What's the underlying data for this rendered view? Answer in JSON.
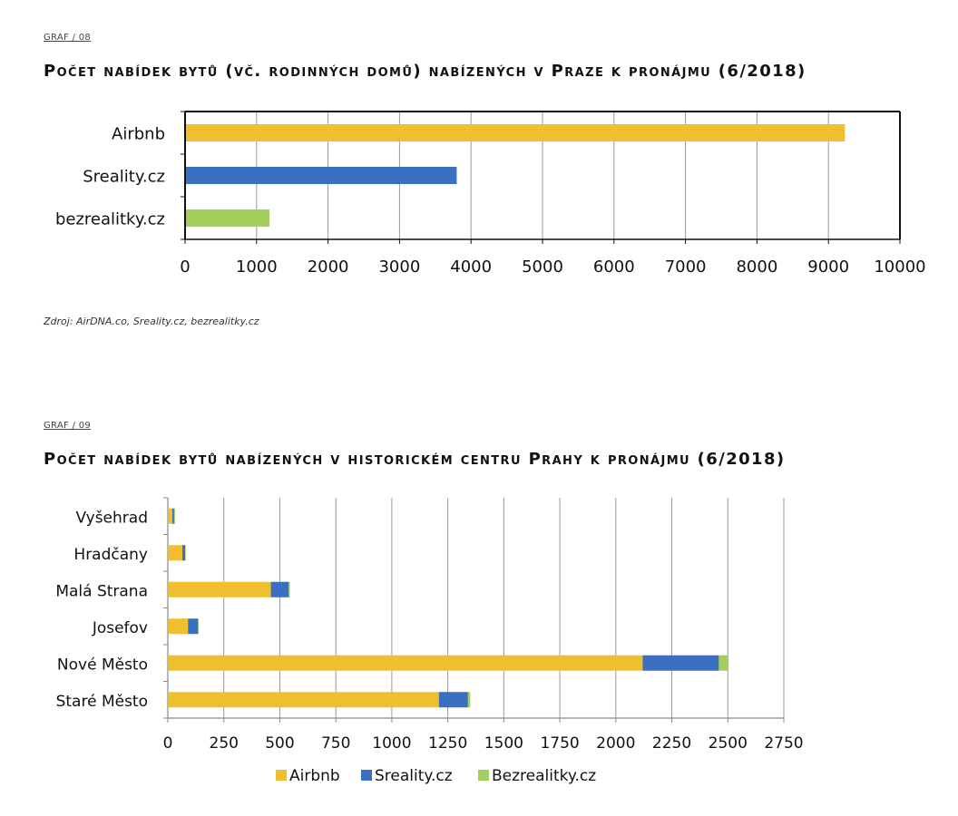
{
  "charts": [
    {
      "graf_label": "GRAF / 08",
      "title": "Počet nabídek bytů (vč. rodinných domů) nabízených v Praze k pronájmu (6/2018)",
      "source": "Zdroj: AirDNA.co, Sreality.cz, bezrealitky.cz"
    },
    {
      "graf_label": "GRAF / 09",
      "title": "Počet nabídek bytů nabízených v historickém centru Prahy k pronájmu (6/2018)"
    }
  ],
  "colors": {
    "airbnb": "#f0bf2e",
    "sreality": "#3a6fc1",
    "bezrealitky": "#a3cf5c",
    "grid": "#9a9a9a"
  },
  "chart_data": [
    {
      "type": "bar",
      "orientation": "horizontal",
      "title": "Počet nabídek bytů (vč. rodinných domů) nabízených v Praze k pronájmu (6/2018)",
      "categories": [
        "Airbnb",
        "Sreality.cz",
        "bezrealitky.cz"
      ],
      "values": [
        9230,
        3800,
        1180
      ],
      "bar_colors": [
        "#f0bf2e",
        "#3a6fc1",
        "#a3cf5c"
      ],
      "xlim": [
        0,
        10000
      ],
      "xticks": [
        0,
        1000,
        2000,
        3000,
        4000,
        5000,
        6000,
        7000,
        8000,
        9000,
        10000
      ],
      "grid": true,
      "legend": false
    },
    {
      "type": "bar",
      "orientation": "horizontal",
      "stacked": true,
      "title": "Počet nabídek bytů nabízených v historickém centru Prahy k pronájmu (6/2018)",
      "categories": [
        "Vyšehrad",
        "Hradčany",
        "Malá Strana",
        "Josefov",
        "Nové Město",
        "Staré Město"
      ],
      "series": [
        {
          "name": "Airbnb",
          "color": "#f0bf2e",
          "values": [
            20,
            65,
            460,
            90,
            2120,
            1210
          ]
        },
        {
          "name": "Sreality.cz",
          "color": "#3a6fc1",
          "values": [
            8,
            12,
            80,
            45,
            340,
            130
          ]
        },
        {
          "name": "Bezrealitky.cz",
          "color": "#a3cf5c",
          "values": [
            4,
            3,
            5,
            3,
            40,
            10
          ]
        }
      ],
      "xlim": [
        0,
        2750
      ],
      "xticks": [
        0,
        250,
        500,
        750,
        1000,
        1250,
        1500,
        1750,
        2000,
        2250,
        2500,
        2750
      ],
      "grid": true,
      "legend": "bottom"
    }
  ]
}
